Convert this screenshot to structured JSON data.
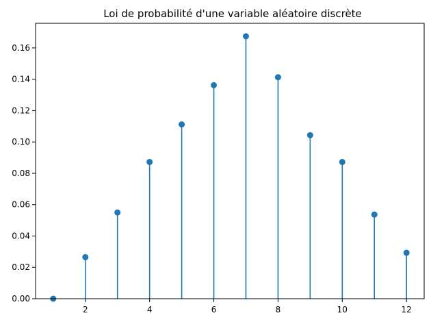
{
  "chart_data": {
    "type": "stem",
    "title": "Loi de probabilité d'une variable aléatoire discrète",
    "xlabel": "",
    "ylabel": "",
    "x": [
      1,
      2,
      3,
      4,
      5,
      6,
      7,
      8,
      9,
      10,
      11,
      12
    ],
    "y": [
      0.0,
      0.0265,
      0.055,
      0.0872,
      0.1112,
      0.1362,
      0.1674,
      0.1413,
      0.1043,
      0.0872,
      0.0537,
      0.0293
    ],
    "xlim": [
      0.45,
      12.55
    ],
    "ylim": [
      0,
      0.1757
    ],
    "xticks": [
      2,
      4,
      6,
      8,
      10,
      12
    ],
    "xtick_labels": [
      "2",
      "4",
      "6",
      "8",
      "10",
      "12"
    ],
    "yticks": [
      0.0,
      0.02,
      0.04,
      0.06,
      0.08,
      0.1,
      0.12,
      0.14,
      0.16
    ],
    "ytick_labels": [
      "0.00",
      "0.02",
      "0.04",
      "0.06",
      "0.08",
      "0.10",
      "0.12",
      "0.14",
      "0.16"
    ],
    "grid": false,
    "legend": "none",
    "colors": {
      "stem": "#1f77b4",
      "axis": "#000000",
      "background": "#ffffff"
    }
  }
}
